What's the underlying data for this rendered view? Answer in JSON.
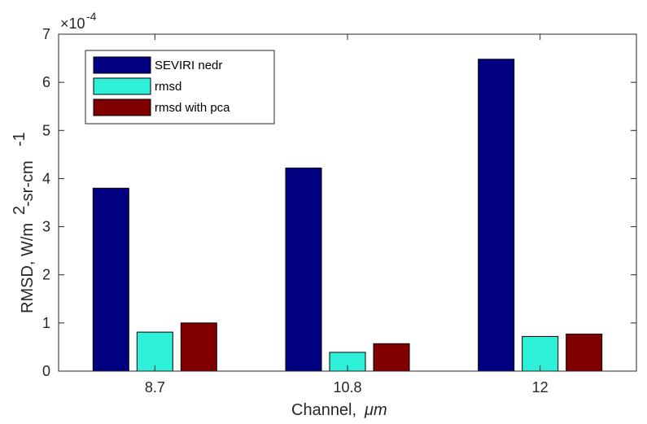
{
  "chart_data": {
    "type": "bar",
    "categories": [
      "8.7",
      "10.8",
      "12"
    ],
    "series": [
      {
        "name": "SEVIRI nedr",
        "color": "#000080",
        "values": [
          3.8,
          4.22,
          6.48
        ]
      },
      {
        "name": "rmsd",
        "color": "#2ef0d8",
        "values": [
          0.81,
          0.39,
          0.72
        ]
      },
      {
        "name": "rmsd with pca",
        "color": "#800000",
        "values": [
          1.0,
          0.57,
          0.77
        ]
      }
    ],
    "value_scale_label": "×10",
    "value_scale_exponent": "-4",
    "xlabel": "Channel,",
    "xlabel_unit": "μm",
    "ylabel": "RMSD, W/m",
    "ylabel_sup1": "2",
    "ylabel_mid": "-sr-cm",
    "ylabel_sup2": "-1",
    "ylim": [
      0,
      7
    ],
    "yticks": [
      "0",
      "1",
      "2",
      "3",
      "4",
      "5",
      "6",
      "7"
    ],
    "legend_position": "top-left",
    "grid": false,
    "bar_edge_color": "#000000"
  }
}
